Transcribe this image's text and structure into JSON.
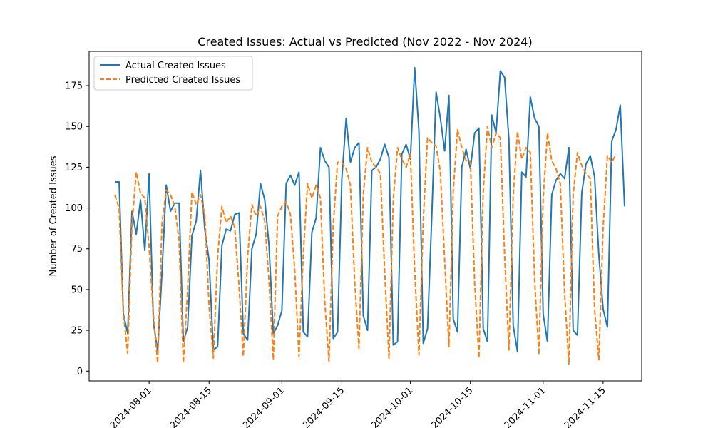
{
  "chart_data": {
    "type": "line",
    "title": "Created Issues: Actual vs Predicted (Nov 2022 - Nov 2024)",
    "xlabel": "",
    "ylabel": "Number of Created Issues",
    "xlim": [
      "2024-07-18",
      "2024-11-24"
    ],
    "ylim": [
      -6,
      196
    ],
    "yticks": [
      0,
      25,
      50,
      75,
      100,
      125,
      150,
      175
    ],
    "xticks": [
      {
        "date": "2024-08-01",
        "label": "2024-08-01"
      },
      {
        "date": "2024-08-15",
        "label": "2024-08-15"
      },
      {
        "date": "2024-09-01",
        "label": "2024-09-01"
      },
      {
        "date": "2024-09-15",
        "label": "2024-09-15"
      },
      {
        "date": "2024-10-01",
        "label": "2024-10-01"
      },
      {
        "date": "2024-10-15",
        "label": "2024-10-15"
      },
      {
        "date": "2024-11-01",
        "label": "2024-11-01"
      },
      {
        "date": "2024-11-15",
        "label": "2024-11-15"
      }
    ],
    "legend_position": "upper-left",
    "grid": false,
    "start_date": "2024-07-24",
    "series": [
      {
        "name": "Actual Created Issues",
        "color": "#1f77b4",
        "style": "solid",
        "values": [
          116,
          116,
          35,
          23,
          98,
          84,
          105,
          74,
          121,
          30,
          12,
          60,
          114,
          98,
          103,
          103,
          18,
          27,
          83,
          92,
          123,
          87,
          68,
          13,
          15,
          77,
          87,
          86,
          96,
          97,
          23,
          19,
          75,
          84,
          115,
          105,
          77,
          23,
          28,
          37,
          115,
          120,
          114,
          122,
          24,
          21,
          85,
          94,
          137,
          129,
          125,
          20,
          24,
          118,
          155,
          128,
          137,
          140,
          34,
          25,
          123,
          125,
          130,
          139,
          131,
          16,
          18,
          133,
          139,
          130,
          186,
          147,
          17,
          26,
          95,
          171,
          155,
          135,
          169,
          32,
          24,
          125,
          136,
          124,
          146,
          149,
          26,
          18,
          157,
          146,
          184,
          180,
          142,
          28,
          12,
          122,
          119,
          168,
          155,
          150,
          35,
          18,
          108,
          117,
          121,
          118,
          137,
          25,
          22,
          109,
          127,
          132,
          119,
          71,
          38,
          27,
          141,
          148,
          163,
          101
        ]
      },
      {
        "name": "Predicted Created Issues",
        "color": "#ff7f0e",
        "style": "dashed",
        "values": [
          108,
          100,
          35,
          11,
          90,
          122,
          109,
          106,
          76,
          35,
          5,
          90,
          111,
          108,
          101,
          80,
          5,
          50,
          110,
          102,
          108,
          96,
          40,
          8,
          70,
          101,
          91,
          95,
          88,
          52,
          9,
          70,
          102,
          95,
          101,
          92,
          55,
          7,
          95,
          101,
          104,
          96,
          62,
          9,
          72,
          115,
          106,
          114,
          106,
          43,
          6,
          90,
          128,
          128,
          124,
          114,
          55,
          14,
          108,
          137,
          128,
          125,
          121,
          61,
          8,
          105,
          137,
          130,
          125,
          133,
          62,
          10,
          92,
          143,
          140,
          138,
          122,
          68,
          15,
          110,
          148,
          137,
          129,
          129,
          54,
          8,
          110,
          150,
          137,
          146,
          143,
          71,
          13,
          107,
          147,
          130,
          137,
          134,
          56,
          10,
          106,
          146,
          129,
          124,
          115,
          48,
          4,
          108,
          134,
          126,
          121,
          118,
          38,
          7,
          88,
          132,
          128,
          133
        ]
      }
    ]
  }
}
